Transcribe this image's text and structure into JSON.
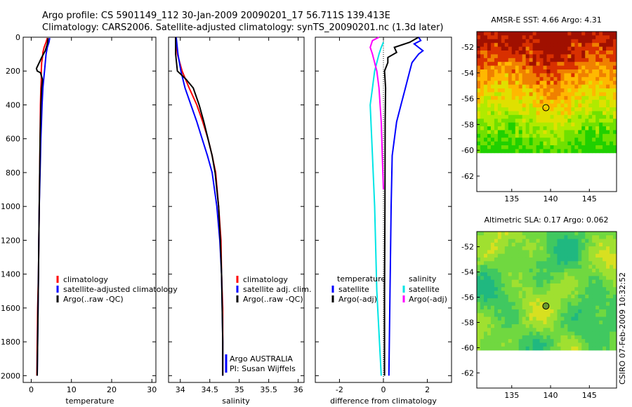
{
  "title": {
    "line1": "Argo profile: CS 5901149_112 30-Jan-2009 20090201_17 56.711S 139.413E",
    "line2": "Climatology: CARS2006. Satellite-adjusted climatology: synTS_20090201.nc (1.3d later)"
  },
  "side_label": "CSIRO 07-Feb-2009 10:32:52",
  "colors": {
    "climatology": "#ff0000",
    "satellite": "#0000ff",
    "argo": "#000000",
    "satellite_salinity": "#00e5e5",
    "argo_salinity_adj": "#ff00ff"
  },
  "chart_data": [
    {
      "type": "line",
      "xlabel": "temperature",
      "xlim": [
        -2,
        31
      ],
      "xticks": [
        0,
        10,
        20,
        30
      ],
      "ylim": [
        2040,
        0
      ],
      "yticks": [
        0,
        200,
        400,
        600,
        800,
        1000,
        1200,
        1400,
        1600,
        1800,
        2000
      ],
      "legend": [
        "climatology",
        "satellite-adjusted climatology",
        "Argo(..raw -QC)"
      ],
      "series": [
        {
          "name": "climatology",
          "color": "#ff0000",
          "points": [
            [
              4.0,
              5
            ],
            [
              3.7,
              30
            ],
            [
              3.2,
              60
            ],
            [
              2.9,
              90
            ],
            [
              2.8,
              120
            ],
            [
              2.6,
              150
            ],
            [
              2.5,
              200
            ],
            [
              2.5,
              250
            ],
            [
              2.4,
              300
            ],
            [
              2.3,
              400
            ],
            [
              2.2,
              600
            ],
            [
              2.1,
              800
            ],
            [
              2.0,
              1000
            ],
            [
              1.9,
              1200
            ],
            [
              1.8,
              1400
            ],
            [
              1.6,
              1600
            ],
            [
              1.5,
              1800
            ],
            [
              1.4,
              2000
            ]
          ]
        },
        {
          "name": "satellite-adjusted climatology",
          "color": "#0000ff",
          "points": [
            [
              4.6,
              5
            ],
            [
              4.4,
              30
            ],
            [
              4.0,
              60
            ],
            [
              3.7,
              100
            ],
            [
              3.5,
              150
            ],
            [
              3.3,
              200
            ],
            [
              3.1,
              250
            ],
            [
              2.9,
              300
            ],
            [
              2.7,
              400
            ],
            [
              2.4,
              600
            ],
            [
              2.2,
              800
            ],
            [
              2.0,
              1000
            ],
            [
              1.9,
              1200
            ],
            [
              1.8,
              1400
            ],
            [
              1.7,
              1600
            ],
            [
              1.6,
              1800
            ],
            [
              1.5,
              2000
            ]
          ]
        },
        {
          "name": "Argo(..raw -QC)",
          "color": "#000000",
          "points": [
            [
              4.2,
              5
            ],
            [
              4.0,
              40
            ],
            [
              3.5,
              80
            ],
            [
              2.6,
              120
            ],
            [
              2.0,
              150
            ],
            [
              1.3,
              185
            ],
            [
              1.5,
              200
            ],
            [
              2.3,
              210
            ],
            [
              2.8,
              250
            ],
            [
              2.6,
              300
            ],
            [
              2.4,
              400
            ],
            [
              2.2,
              600
            ],
            [
              2.1,
              800
            ],
            [
              2.0,
              1000
            ],
            [
              1.9,
              1200
            ],
            [
              1.8,
              1400
            ],
            [
              1.7,
              1600
            ],
            [
              1.6,
              1800
            ],
            [
              1.5,
              2000
            ]
          ]
        }
      ]
    },
    {
      "type": "line",
      "xlabel": "salinity",
      "xlim": [
        33.8,
        36.1
      ],
      "xticks": [
        34,
        34.5,
        35,
        35.5,
        36
      ],
      "xticklabels": [
        "34",
        "34.5",
        "35",
        "35.5",
        "36"
      ],
      "ylim": [
        2040,
        0
      ],
      "legend": [
        "climatology",
        "satellite adj. clim.",
        "Argo(..raw -QC)"
      ],
      "annotations": [
        "Argo AUSTRALIA",
        "PI: Susan Wijffels"
      ],
      "series": [
        {
          "name": "climatology",
          "color": "#ff0000",
          "points": [
            [
              33.92,
              0
            ],
            [
              33.95,
              100
            ],
            [
              34.03,
              200
            ],
            [
              34.15,
              300
            ],
            [
              34.28,
              400
            ],
            [
              34.38,
              500
            ],
            [
              34.47,
              600
            ],
            [
              34.54,
              700
            ],
            [
              34.6,
              800
            ],
            [
              34.65,
              1000
            ],
            [
              34.69,
              1200
            ],
            [
              34.7,
              1400
            ],
            [
              34.72,
              1600
            ],
            [
              34.72,
              1800
            ],
            [
              34.72,
              2000
            ]
          ]
        },
        {
          "name": "satellite adj. clim.",
          "color": "#0000ff",
          "points": [
            [
              33.93,
              0
            ],
            [
              33.96,
              100
            ],
            [
              34.01,
              200
            ],
            [
              34.08,
              300
            ],
            [
              34.18,
              400
            ],
            [
              34.28,
              500
            ],
            [
              34.37,
              600
            ],
            [
              34.46,
              700
            ],
            [
              34.54,
              800
            ],
            [
              34.62,
              1000
            ],
            [
              34.67,
              1200
            ],
            [
              34.7,
              1400
            ],
            [
              34.71,
              1600
            ],
            [
              34.72,
              1800
            ],
            [
              34.72,
              2000
            ]
          ]
        },
        {
          "name": "Argo(..raw -QC)",
          "color": "#000000",
          "points": [
            [
              33.92,
              0
            ],
            [
              33.92,
              100
            ],
            [
              33.95,
              200
            ],
            [
              34.1,
              250
            ],
            [
              34.22,
              300
            ],
            [
              34.32,
              400
            ],
            [
              34.4,
              500
            ],
            [
              34.47,
              600
            ],
            [
              34.54,
              700
            ],
            [
              34.59,
              800
            ],
            [
              34.65,
              1000
            ],
            [
              34.68,
              1200
            ],
            [
              34.7,
              1400
            ],
            [
              34.71,
              1600
            ],
            [
              34.72,
              1800
            ],
            [
              34.72,
              2000
            ]
          ]
        }
      ]
    },
    {
      "type": "line",
      "xlabel": "difference from climatology",
      "xlim": [
        -3.1,
        3.1
      ],
      "xticks": [
        -2,
        0,
        2
      ],
      "ylim": [
        2040,
        0
      ],
      "legend_left_title": "temperature",
      "legend_right_title": "salinity",
      "legend_left": [
        "satellite",
        "Argo(-adj)"
      ],
      "legend_right": [
        "satellite",
        "Argo(-adj)"
      ],
      "series": [
        {
          "name": "temperature satellite",
          "color": "#0000ff",
          "points": [
            [
              1.6,
              0
            ],
            [
              1.7,
              20
            ],
            [
              1.4,
              40
            ],
            [
              1.6,
              60
            ],
            [
              1.8,
              80
            ],
            [
              1.6,
              100
            ],
            [
              1.3,
              150
            ],
            [
              1.2,
              200
            ],
            [
              1.0,
              300
            ],
            [
              0.8,
              400
            ],
            [
              0.6,
              500
            ],
            [
              0.4,
              700
            ],
            [
              0.35,
              1000
            ],
            [
              0.3,
              1500
            ],
            [
              0.25,
              2000
            ]
          ]
        },
        {
          "name": "temperature Argo(-adj)",
          "color": "#000000",
          "points": [
            [
              1.6,
              0
            ],
            [
              1.2,
              30
            ],
            [
              0.5,
              60
            ],
            [
              0.6,
              90
            ],
            [
              0.2,
              120
            ],
            [
              0.2,
              150
            ],
            [
              0.05,
              200
            ],
            [
              0.1,
              300
            ],
            [
              0.08,
              500
            ],
            [
              0.07,
              1000
            ],
            [
              0.05,
              1500
            ],
            [
              0.05,
              2000
            ]
          ]
        },
        {
          "name": "salinity satellite",
          "color": "#00e5e5",
          "points": [
            [
              0.0,
              30
            ],
            [
              -0.1,
              60
            ],
            [
              -0.2,
              100
            ],
            [
              -0.3,
              150
            ],
            [
              -0.4,
              200
            ],
            [
              -0.5,
              300
            ],
            [
              -0.6,
              400
            ],
            [
              -0.5,
              700
            ],
            [
              -0.4,
              1000
            ],
            [
              -0.3,
              1500
            ],
            [
              -0.1,
              2000
            ]
          ]
        },
        {
          "name": "salinity Argo(-adj)",
          "color": "#ff00ff",
          "points": [
            [
              -0.2,
              0
            ],
            [
              -0.5,
              20
            ],
            [
              -0.6,
              60
            ],
            [
              -0.5,
              100
            ],
            [
              -0.4,
              150
            ],
            [
              -0.3,
              200
            ],
            [
              -0.2,
              300
            ],
            [
              -0.1,
              500
            ],
            [
              -0.05,
              700
            ],
            [
              0.0,
              900
            ]
          ]
        }
      ]
    },
    {
      "type": "heatmap",
      "title": "AMSR-E SST: 4.66 Argo: 4.31",
      "xlim": [
        130.5,
        148.5
      ],
      "ylim": [
        -63.2,
        -50.8
      ],
      "xticks": [
        135,
        140,
        145
      ],
      "yticks": [
        -52,
        -54,
        -56,
        -58,
        -60,
        -62
      ],
      "data_extent_y": [
        -60.2,
        -50.8
      ],
      "colormap": [
        "#a01000",
        "#d83000",
        "#f08000",
        "#ffb800",
        "#e0e000",
        "#b0ea00",
        "#70e000",
        "#20d000"
      ],
      "marker": {
        "lon": 139.4,
        "lat": -56.7
      }
    },
    {
      "type": "heatmap",
      "title": "Altimetric SLA: 0.17 Argo: 0.062",
      "xlim": [
        130.5,
        148.5
      ],
      "ylim": [
        -63.2,
        -50.8
      ],
      "xticks": [
        135,
        140,
        145
      ],
      "yticks": [
        -52,
        -54,
        -56,
        -58,
        -60,
        -62
      ],
      "data_extent_y": [
        -60.2,
        -50.8
      ],
      "colormap": [
        "#20b880",
        "#40c860",
        "#70d840",
        "#a0e030",
        "#d8e020",
        "#f0c020",
        "#f09010"
      ],
      "marker": {
        "lon": 139.4,
        "lat": -56.7
      }
    }
  ]
}
